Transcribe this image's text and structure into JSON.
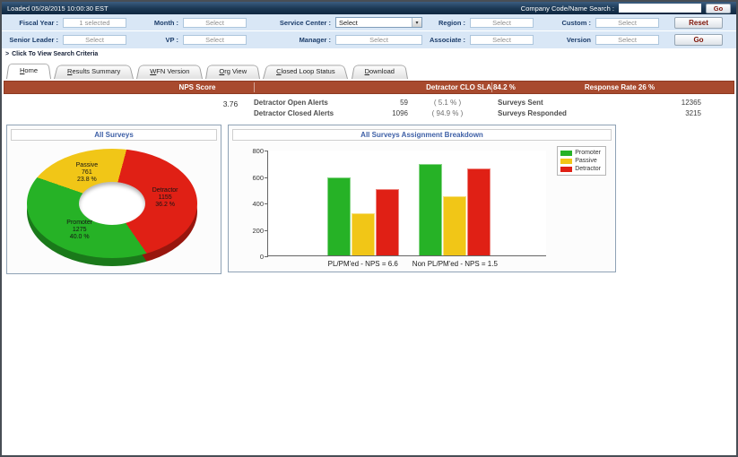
{
  "top_bar": {
    "loaded_text": "Loaded 05/28/2015 10:00:30 EST",
    "search_label": "Company Code/Name Search :",
    "search_value": "",
    "go_label": "Go"
  },
  "filters": {
    "row1": [
      {
        "label": "Fiscal Year :",
        "value": "1 selected"
      },
      {
        "label": "Month :",
        "value": "Select"
      },
      {
        "label": "Service Center :",
        "value": "Select"
      },
      {
        "label": "Region :",
        "value": "Select"
      },
      {
        "label": "Custom :",
        "value": "Select"
      }
    ],
    "row2": [
      {
        "label": "Senior Leader :",
        "value": "Select"
      },
      {
        "label": "VP :",
        "value": "Select"
      },
      {
        "label": "Manager :",
        "value": "Select"
      },
      {
        "label": "Associate :",
        "value": "Select"
      },
      {
        "label": "Version",
        "value": "Select"
      }
    ],
    "reset_label": "Reset",
    "go_label": "Go"
  },
  "criteria_toggle": {
    "arrow": ">",
    "label": "Click To View Search Criteria"
  },
  "tabs": [
    {
      "label": "Home",
      "active": true
    },
    {
      "label": "Results Summary",
      "active": false
    },
    {
      "label": "WFN Version",
      "active": false
    },
    {
      "label": "Org View",
      "active": false
    },
    {
      "label": "Closed Loop Status",
      "active": false
    },
    {
      "label": "Download",
      "active": false
    }
  ],
  "banner": {
    "nps_header": "NPS Score",
    "clo_header": "Detractor CLO SLA 84.2 %",
    "response_header": "Response Rate 26 %"
  },
  "stats": {
    "nps_value": "3.76",
    "alerts": [
      {
        "label": "Detractor Open Alerts",
        "value": "59",
        "pct": "( 5.1 % )"
      },
      {
        "label": "Detractor Closed Alerts",
        "value": "1096",
        "pct": "( 94.9 % )"
      }
    ],
    "surveys": [
      {
        "label": "Surveys Sent",
        "value": "12365"
      },
      {
        "label": "Surveys Responded",
        "value": "3215"
      }
    ]
  },
  "chart_data": [
    {
      "type": "pie",
      "subtype": "3d-donut",
      "title": "All Surveys",
      "start_angle": 15,
      "slices": [
        {
          "label": "Detractor",
          "value": 1155,
          "pct_label": "36.2 %",
          "color": "#e02015"
        },
        {
          "label": "Promoter",
          "value": 1275,
          "pct_label": "40.0 %",
          "color": "#26b226"
        },
        {
          "label": "Passive",
          "value": 761,
          "pct_label": "23.8 %",
          "color": "#f1c617"
        }
      ]
    },
    {
      "type": "bar",
      "title": "All Surveys Assignment Breakdown",
      "categories": [
        "PL/PM'ed - NPS = 6.6",
        "Non PL/PM'ed - NPS = 1.5"
      ],
      "series": [
        {
          "name": "Promoter",
          "color": "#26b226",
          "values": [
            590,
            690
          ]
        },
        {
          "name": "Passive",
          "color": "#f1c617",
          "values": [
            320,
            445
          ]
        },
        {
          "name": "Detractor",
          "color": "#e02015",
          "values": [
            500,
            660
          ]
        }
      ],
      "ylim": [
        0,
        800
      ],
      "ytick_step": 200,
      "legend_position": "top-right",
      "grid": false
    }
  ]
}
